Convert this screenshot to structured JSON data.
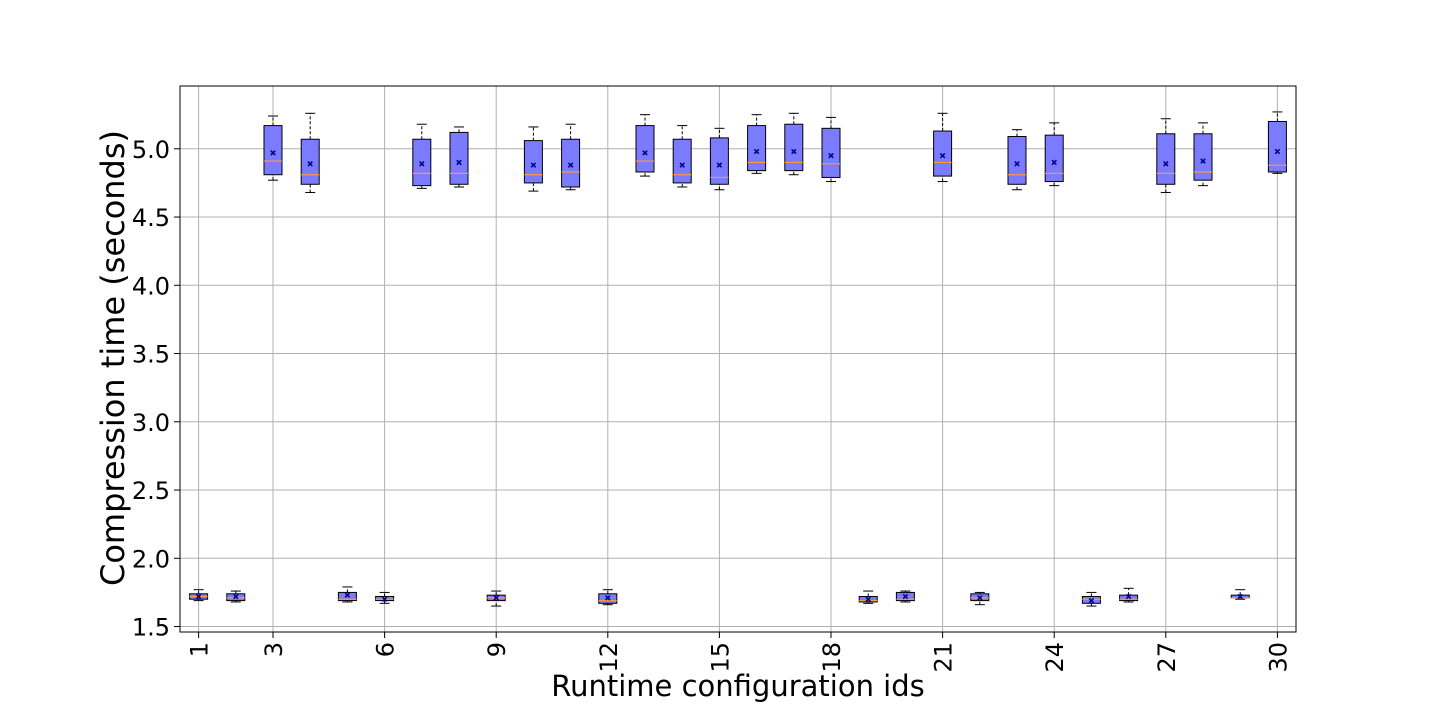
{
  "chart_data": {
    "type": "box",
    "title": "",
    "xlabel": "Runtime configuration ids",
    "ylabel": "Compression time (seconds)",
    "ylim": [
      1.46,
      5.46
    ],
    "xlim": [
      0.5,
      30.5
    ],
    "x_ticks": [
      1,
      3,
      6,
      9,
      12,
      15,
      18,
      21,
      24,
      27,
      30
    ],
    "x_tick_labels": [
      "1",
      "3",
      "6",
      "9",
      "12",
      "15",
      "18",
      "21",
      "24",
      "27",
      "30"
    ],
    "x_tick_rotation": "vertical",
    "y_ticks": [
      1.5,
      2.0,
      2.5,
      3.0,
      3.5,
      4.0,
      4.5,
      5.0
    ],
    "y_tick_labels": [
      "1.5",
      "2.0",
      "2.5",
      "3.0",
      "3.5",
      "4.0",
      "4.5",
      "5.0"
    ],
    "grid": true,
    "colors": {
      "box_fill": "#7b7bff",
      "box_edge": "#000000",
      "median": "#ff9933",
      "mean_marker": "#00008b",
      "grid": "#b0b0b0"
    },
    "boxes": [
      {
        "id": 1,
        "min": 1.69,
        "q1": 1.7,
        "median": 1.72,
        "q3": 1.74,
        "max": 1.77,
        "mean": 1.72
      },
      {
        "id": 2,
        "min": 1.68,
        "q1": 1.69,
        "median": 1.71,
        "q3": 1.74,
        "max": 1.76,
        "mean": 1.72
      },
      {
        "id": 3,
        "min": 4.77,
        "q1": 4.81,
        "median": 4.91,
        "q3": 5.17,
        "max": 5.24,
        "mean": 4.97
      },
      {
        "id": 4,
        "min": 4.68,
        "q1": 4.74,
        "median": 4.81,
        "q3": 5.07,
        "max": 5.26,
        "mean": 4.89
      },
      {
        "id": 5,
        "min": 1.68,
        "q1": 1.69,
        "median": 1.7,
        "q3": 1.75,
        "max": 1.79,
        "mean": 1.73
      },
      {
        "id": 6,
        "min": 1.67,
        "q1": 1.69,
        "median": 1.7,
        "q3": 1.72,
        "max": 1.75,
        "mean": 1.7
      },
      {
        "id": 7,
        "min": 4.71,
        "q1": 4.73,
        "median": 4.82,
        "q3": 5.07,
        "max": 5.18,
        "mean": 4.89
      },
      {
        "id": 8,
        "min": 4.72,
        "q1": 4.74,
        "median": 4.82,
        "q3": 5.12,
        "max": 5.16,
        "mean": 4.9
      },
      {
        "id": 9,
        "min": 1.65,
        "q1": 1.69,
        "median": 1.71,
        "q3": 1.73,
        "max": 1.76,
        "mean": 1.71
      },
      {
        "id": 10,
        "min": 4.69,
        "q1": 4.75,
        "median": 4.81,
        "q3": 5.06,
        "max": 5.16,
        "mean": 4.88
      },
      {
        "id": 11,
        "min": 4.7,
        "q1": 4.72,
        "median": 4.83,
        "q3": 5.07,
        "max": 5.18,
        "mean": 4.88
      },
      {
        "id": 12,
        "min": 1.66,
        "q1": 1.67,
        "median": 1.69,
        "q3": 1.74,
        "max": 1.77,
        "mean": 1.71
      },
      {
        "id": 13,
        "min": 4.8,
        "q1": 4.83,
        "median": 4.91,
        "q3": 5.17,
        "max": 5.25,
        "mean": 4.97
      },
      {
        "id": 14,
        "min": 4.72,
        "q1": 4.75,
        "median": 4.81,
        "q3": 5.07,
        "max": 5.17,
        "mean": 4.88
      },
      {
        "id": 15,
        "min": 4.7,
        "q1": 4.74,
        "median": 4.79,
        "q3": 5.08,
        "max": 5.15,
        "mean": 4.88
      },
      {
        "id": 16,
        "min": 4.82,
        "q1": 4.84,
        "median": 4.9,
        "q3": 5.17,
        "max": 5.25,
        "mean": 4.98
      },
      {
        "id": 17,
        "min": 4.81,
        "q1": 4.84,
        "median": 4.9,
        "q3": 5.18,
        "max": 5.26,
        "mean": 4.98
      },
      {
        "id": 18,
        "min": 4.76,
        "q1": 4.79,
        "median": 4.89,
        "q3": 5.15,
        "max": 5.23,
        "mean": 4.95
      },
      {
        "id": 19,
        "min": 1.67,
        "q1": 1.68,
        "median": 1.69,
        "q3": 1.72,
        "max": 1.76,
        "mean": 1.7
      },
      {
        "id": 20,
        "min": 1.68,
        "q1": 1.69,
        "median": 1.7,
        "q3": 1.75,
        "max": 1.76,
        "mean": 1.72
      },
      {
        "id": 21,
        "min": 4.76,
        "q1": 4.8,
        "median": 4.9,
        "q3": 5.13,
        "max": 5.26,
        "mean": 4.95
      },
      {
        "id": 22,
        "min": 1.66,
        "q1": 1.69,
        "median": 1.71,
        "q3": 1.74,
        "max": 1.75,
        "mean": 1.71
      },
      {
        "id": 23,
        "min": 4.7,
        "q1": 4.74,
        "median": 4.81,
        "q3": 5.09,
        "max": 5.14,
        "mean": 4.89
      },
      {
        "id": 24,
        "min": 4.73,
        "q1": 4.76,
        "median": 4.82,
        "q3": 5.1,
        "max": 5.19,
        "mean": 4.9
      },
      {
        "id": 25,
        "min": 1.65,
        "q1": 1.67,
        "median": 1.7,
        "q3": 1.72,
        "max": 1.75,
        "mean": 1.69
      },
      {
        "id": 26,
        "min": 1.68,
        "q1": 1.69,
        "median": 1.7,
        "q3": 1.73,
        "max": 1.78,
        "mean": 1.72
      },
      {
        "id": 27,
        "min": 4.68,
        "q1": 4.74,
        "median": 4.82,
        "q3": 5.11,
        "max": 5.22,
        "mean": 4.89
      },
      {
        "id": 28,
        "min": 4.73,
        "q1": 4.77,
        "median": 4.83,
        "q3": 5.11,
        "max": 5.19,
        "mean": 4.91
      },
      {
        "id": 29,
        "min": 1.7,
        "q1": 1.71,
        "median": 1.71,
        "q3": 1.73,
        "max": 1.77,
        "mean": 1.72
      },
      {
        "id": 30,
        "min": 4.82,
        "q1": 4.83,
        "median": 4.88,
        "q3": 5.2,
        "max": 5.27,
        "mean": 4.98
      }
    ]
  }
}
